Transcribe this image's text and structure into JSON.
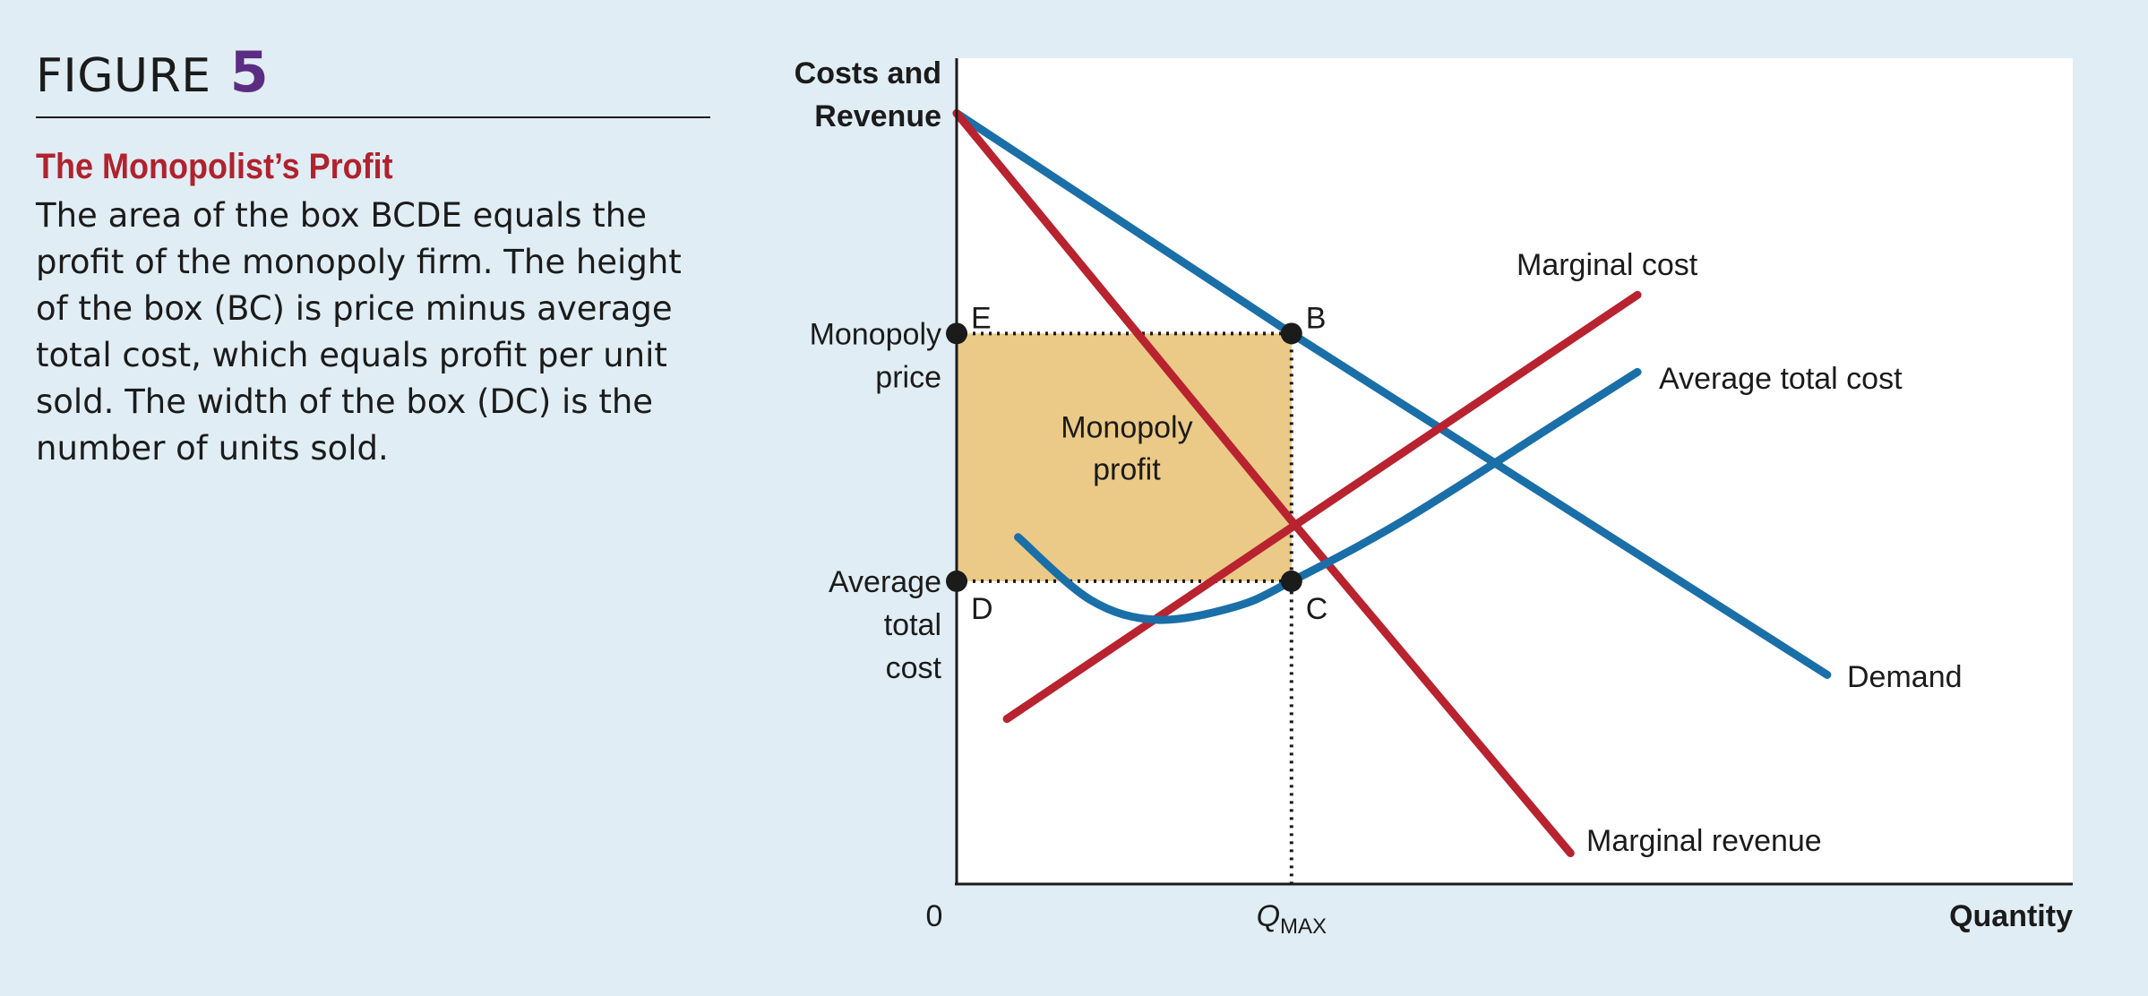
{
  "figure": {
    "label": "FIGURE",
    "number": "5"
  },
  "caption": {
    "title": "The Monopolist’s Profit",
    "body": "The area of the box BCDE equals the profit of the monopoly firm. The height of the box (BC) is price minus average total cost, which equals profit per unit sold. The width of the box (DC) is the number of units sold."
  },
  "chart_data": {
    "type": "line",
    "ylabel_lines": [
      "Costs and",
      "Revenue"
    ],
    "xlabel": "Quantity",
    "origin_label": "0",
    "x_tick": {
      "label": "Q",
      "subscript": "MAX",
      "x": 3.0
    },
    "y_tick_labels": [
      {
        "lines": [
          "Monopoly",
          "price"
        ],
        "y": 5.0
      },
      {
        "lines": [
          "Average",
          "total",
          "cost"
        ],
        "y": 2.75
      }
    ],
    "xlim": [
      0,
      10
    ],
    "ylim": [
      0,
      7.5
    ],
    "grid": false,
    "series": [
      {
        "name": "Demand",
        "color": "#1a6fa8",
        "points": [
          [
            0,
            7.0
          ],
          [
            3.0,
            5.0
          ],
          [
            7.8,
            1.9
          ]
        ]
      },
      {
        "name": "Marginal revenue",
        "color": "#b8232f",
        "points": [
          [
            0,
            7.0
          ],
          [
            3.0,
            3.3
          ],
          [
            5.5,
            0.28
          ]
        ]
      },
      {
        "name": "Marginal cost",
        "color": "#b8232f",
        "points": [
          [
            0.45,
            1.5
          ],
          [
            6.1,
            5.35
          ]
        ]
      },
      {
        "name": "Average total cost",
        "color": "#1a6fa8",
        "points": [
          [
            0.55,
            3.15
          ],
          [
            1.2,
            2.58
          ],
          [
            1.8,
            2.4
          ],
          [
            2.5,
            2.52
          ],
          [
            3.0,
            2.75
          ],
          [
            4.0,
            3.3
          ],
          [
            5.4,
            4.2
          ],
          [
            6.1,
            4.65
          ]
        ]
      }
    ],
    "points": [
      {
        "label": "B",
        "x": 3.0,
        "y": 5.0
      },
      {
        "label": "C",
        "x": 3.0,
        "y": 2.75
      },
      {
        "label": "D",
        "x": 0,
        "y": 2.75
      },
      {
        "label": "E",
        "x": 0,
        "y": 5.0
      }
    ],
    "profit_box": {
      "label_lines": [
        "Monopoly",
        "profit"
      ],
      "x": [
        0,
        3.0
      ],
      "y": [
        2.75,
        5.0
      ],
      "color": "#ebca87"
    },
    "colors": {
      "demand_atc": "#1a6fa8",
      "mr_mc": "#b8232f",
      "plot_bg": "#ffffff",
      "page_bg": "#e0edf4"
    }
  }
}
